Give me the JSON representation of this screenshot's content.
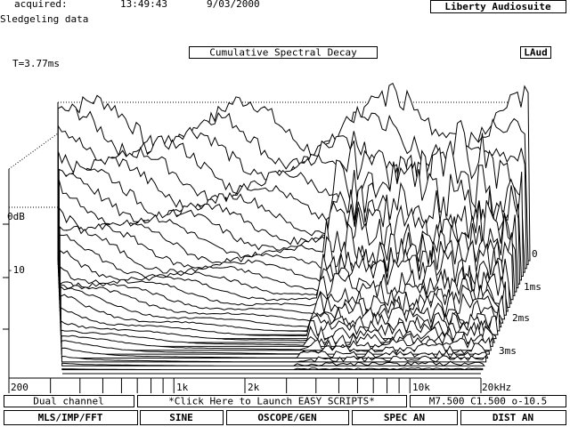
{
  "header": {
    "acquired_label": "acquired:",
    "time": "13:49:43",
    "date": "9/03/2000",
    "app_name": "Liberty Audiosuite",
    "dataset": "Sledgeling data"
  },
  "plot": {
    "title": "Cumulative Spectral Decay",
    "badge": "LAud",
    "time_note": "T=3.77ms",
    "y_labels": [
      "0dB",
      "-10"
    ],
    "x_labels": [
      "200",
      "1k",
      "2k",
      "10k",
      "20kHz"
    ],
    "time_labels": [
      "0",
      "1ms",
      "2ms",
      "3ms"
    ]
  },
  "status": {
    "mode": "Dual channel",
    "scripts": "*Click Here to Launch EASY SCRIPTS*",
    "settings": "M7.500 C1.500 o-10.5"
  },
  "menu": [
    "MLS/IMP/FFT",
    "SINE",
    "OSCOPE/GEN",
    "SPEC AN",
    "DIST AN"
  ]
}
